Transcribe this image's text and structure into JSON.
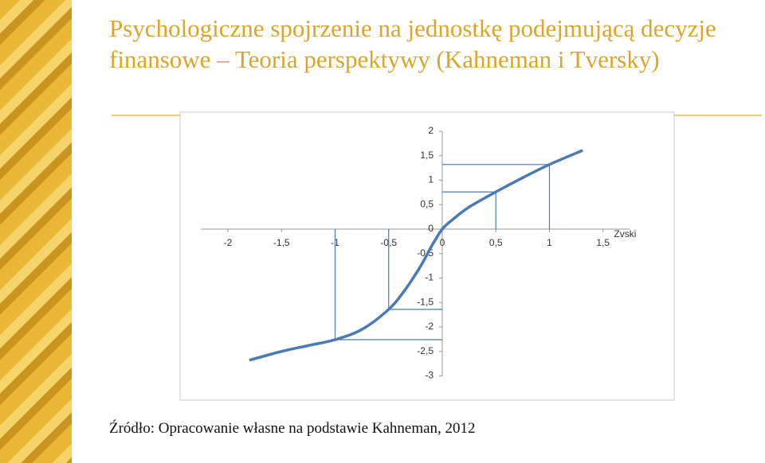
{
  "title": "Psychologiczne spojrzenie na jednostkę podejmującą decyzje finansowe – Teoria perspektywy (Kahneman i Tversky)",
  "source": "Źródło: Opracowanie własne na podstawie Kahneman, 2012",
  "chart_data": {
    "type": "line",
    "x_label": "Zvski",
    "color": "#4a7ab5",
    "x": [
      -1.8,
      -1.5,
      -1.25,
      -1,
      -0.75,
      -0.5,
      -0.35,
      -0.2,
      -0.1,
      0,
      0.1,
      0.25,
      0.5,
      0.75,
      1,
      1.31
    ],
    "values": [
      -2.68,
      -2.5,
      -2.38,
      -2.26,
      -2.05,
      -1.64,
      -1.25,
      -0.75,
      -0.35,
      0,
      0.2,
      0.45,
      0.76,
      1.05,
      1.32,
      1.61
    ],
    "guides": {
      "x": [
        -1,
        -0.5,
        0.5,
        1
      ],
      "y": [
        -2.26,
        -1.64,
        0.76,
        1.32
      ]
    },
    "xlim": [
      -2.25,
      1.75
    ],
    "ylim": [
      -3,
      2
    ],
    "xticks": [
      -2,
      {
        "value": -1.5,
        "label": "-1,5"
      },
      -1,
      {
        "value": -0.5,
        "label": "-0,5"
      },
      0,
      {
        "value": 0.5,
        "label": "0,5"
      },
      1,
      {
        "value": 1.5,
        "label": "1,5"
      }
    ],
    "yticks": [
      2,
      {
        "value": 1.5,
        "label": "1,5"
      },
      1,
      {
        "value": 0.5,
        "label": "0,5"
      },
      0,
      {
        "value": -0.5,
        "label": "-0,5"
      },
      -1,
      {
        "value": -1.5,
        "label": "-1,5"
      },
      -2,
      {
        "value": -2.5,
        "label": "-2,5"
      },
      -3
    ]
  }
}
